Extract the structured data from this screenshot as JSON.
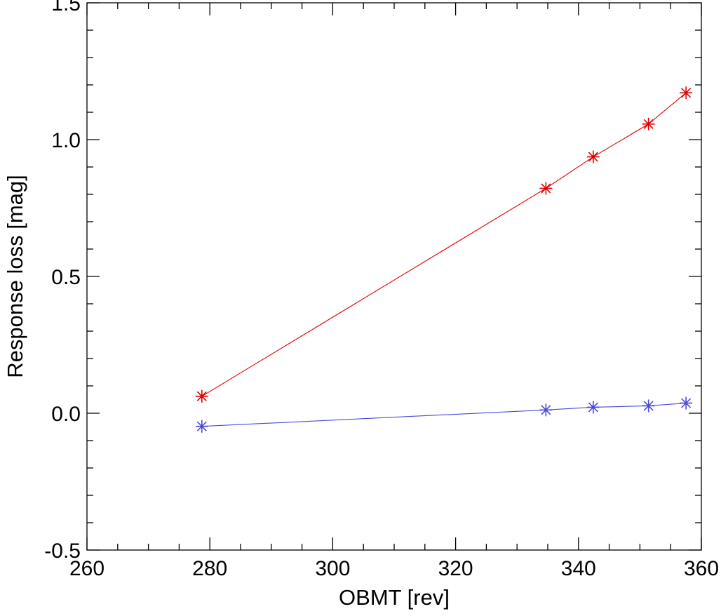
{
  "chart_data": {
    "type": "line",
    "title": "",
    "xlabel": "OBMT [rev]",
    "ylabel": "Response loss [mag]",
    "xlim": [
      260,
      360
    ],
    "ylim": [
      -0.5,
      1.5
    ],
    "x_ticks": [
      260,
      280,
      300,
      320,
      340,
      360
    ],
    "x_tick_labels": [
      "260",
      "280",
      "300",
      "320",
      "340",
      "360"
    ],
    "y_ticks": [
      -0.5,
      0.0,
      0.5,
      1.0,
      1.5
    ],
    "y_tick_labels": [
      "-0.5",
      "0.0",
      "0.5",
      "1.0",
      "1.5"
    ],
    "x_minor_step": 5,
    "y_minor_step": 0.1,
    "grid": false,
    "legend": "none",
    "series": [
      {
        "color": "#e00000",
        "marker": "asterisk",
        "x": [
          278.7,
          334.7,
          342.4,
          351.4,
          357.5
        ],
        "y": [
          0.062,
          0.822,
          0.937,
          1.057,
          1.171
        ]
      },
      {
        "color": "#4a4ad8",
        "marker": "asterisk",
        "x": [
          278.7,
          334.7,
          342.4,
          351.4,
          357.5
        ],
        "y": [
          -0.048,
          0.012,
          0.022,
          0.027,
          0.037
        ]
      }
    ]
  }
}
